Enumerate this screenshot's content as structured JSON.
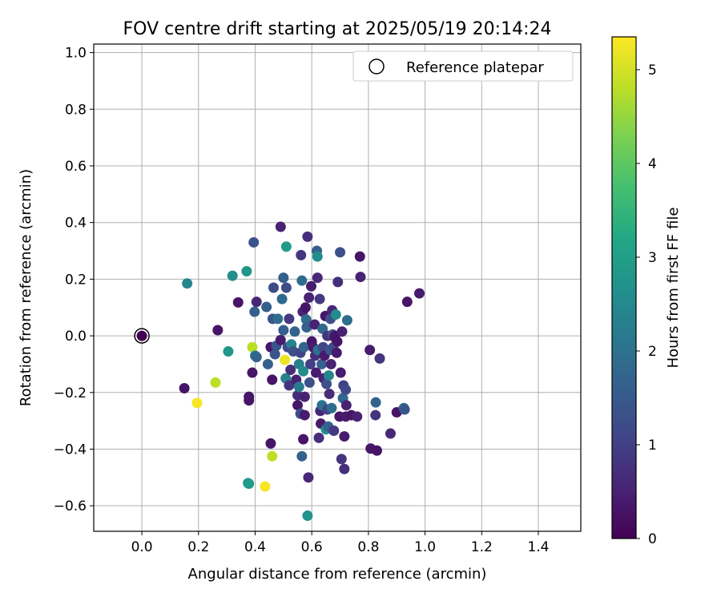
{
  "chart_data": {
    "type": "scatter",
    "title": "FOV centre drift starting at 2025/05/19 20:14:24",
    "xlabel": "Angular distance from reference (arcmin)",
    "ylabel": "Rotation from reference (arcmin)",
    "xlim": [
      -0.17,
      1.55
    ],
    "ylim": [
      -0.69,
      1.03
    ],
    "xticks": [
      0.0,
      0.2,
      0.4,
      0.6,
      0.8,
      1.0,
      1.2,
      1.4
    ],
    "yticks": [
      -0.6,
      -0.4,
      -0.2,
      0.0,
      0.2,
      0.4,
      0.6,
      0.8,
      1.0
    ],
    "grid": true,
    "legend": {
      "location": "upper-right",
      "label": "Reference platepar"
    },
    "reference_point": {
      "x": 0.0,
      "y": 0.0
    },
    "colorbar": {
      "label": "Hours from first FF file",
      "min": 0,
      "max": 5.35,
      "ticks": [
        0,
        1,
        2,
        3,
        4,
        5
      ],
      "colormap": "viridis"
    },
    "points": [
      {
        "x": 0.0,
        "y": 0.0,
        "c": 0.0
      },
      {
        "x": 0.16,
        "y": 0.185,
        "c": 2.4
      },
      {
        "x": 0.15,
        "y": -0.185,
        "c": 0.3
      },
      {
        "x": 0.195,
        "y": -0.237,
        "c": 5.3
      },
      {
        "x": 0.26,
        "y": -0.165,
        "c": 4.8
      },
      {
        "x": 0.268,
        "y": 0.02,
        "c": 0.3
      },
      {
        "x": 0.305,
        "y": -0.055,
        "c": 2.8
      },
      {
        "x": 0.32,
        "y": 0.212,
        "c": 2.6
      },
      {
        "x": 0.34,
        "y": 0.118,
        "c": 0.3
      },
      {
        "x": 0.37,
        "y": 0.228,
        "c": 2.8
      },
      {
        "x": 0.375,
        "y": -0.52,
        "c": 2.8
      },
      {
        "x": 0.378,
        "y": -0.522,
        "c": 2.9
      },
      {
        "x": 0.378,
        "y": -0.215,
        "c": 0.3
      },
      {
        "x": 0.378,
        "y": -0.228,
        "c": 0.3
      },
      {
        "x": 0.39,
        "y": -0.04,
        "c": 4.8
      },
      {
        "x": 0.39,
        "y": -0.13,
        "c": 0.3
      },
      {
        "x": 0.395,
        "y": 0.33,
        "c": 1.4
      },
      {
        "x": 0.398,
        "y": 0.085,
        "c": 1.6
      },
      {
        "x": 0.4,
        "y": -0.07,
        "c": 2.2
      },
      {
        "x": 0.405,
        "y": -0.075,
        "c": 1.7
      },
      {
        "x": 0.405,
        "y": 0.12,
        "c": 0.6
      },
      {
        "x": 0.435,
        "y": -0.532,
        "c": 5.3
      },
      {
        "x": 0.44,
        "y": 0.102,
        "c": 1.6
      },
      {
        "x": 0.445,
        "y": -0.1,
        "c": 1.6
      },
      {
        "x": 0.455,
        "y": -0.38,
        "c": 0.3
      },
      {
        "x": 0.455,
        "y": -0.04,
        "c": 0.3
      },
      {
        "x": 0.46,
        "y": -0.155,
        "c": 0.3
      },
      {
        "x": 0.46,
        "y": -0.425,
        "c": 4.8
      },
      {
        "x": 0.462,
        "y": 0.06,
        "c": 1.4
      },
      {
        "x": 0.465,
        "y": 0.17,
        "c": 1.2
      },
      {
        "x": 0.47,
        "y": -0.065,
        "c": 1.4
      },
      {
        "x": 0.475,
        "y": -0.035,
        "c": 1.4
      },
      {
        "x": 0.48,
        "y": 0.06,
        "c": 1.9
      },
      {
        "x": 0.49,
        "y": 0.385,
        "c": 0.5
      },
      {
        "x": 0.49,
        "y": -0.015,
        "c": 0.4
      },
      {
        "x": 0.495,
        "y": 0.13,
        "c": 1.8
      },
      {
        "x": 0.5,
        "y": 0.205,
        "c": 1.6
      },
      {
        "x": 0.5,
        "y": 0.02,
        "c": 1.6
      },
      {
        "x": 0.505,
        "y": -0.085,
        "c": 5.2
      },
      {
        "x": 0.508,
        "y": -0.15,
        "c": 2.4
      },
      {
        "x": 0.51,
        "y": 0.315,
        "c": 2.9
      },
      {
        "x": 0.51,
        "y": 0.17,
        "c": 1.2
      },
      {
        "x": 0.515,
        "y": -0.04,
        "c": 1.2
      },
      {
        "x": 0.52,
        "y": 0.06,
        "c": 0.9
      },
      {
        "x": 0.52,
        "y": -0.175,
        "c": 0.8
      },
      {
        "x": 0.525,
        "y": -0.12,
        "c": 0.7
      },
      {
        "x": 0.528,
        "y": -0.03,
        "c": 2.4
      },
      {
        "x": 0.535,
        "y": -0.055,
        "c": 1.3
      },
      {
        "x": 0.54,
        "y": 0.015,
        "c": 1.7
      },
      {
        "x": 0.545,
        "y": -0.155,
        "c": 0.5
      },
      {
        "x": 0.55,
        "y": -0.21,
        "c": 0.7
      },
      {
        "x": 0.55,
        "y": -0.245,
        "c": 0.3
      },
      {
        "x": 0.555,
        "y": -0.1,
        "c": 2.3
      },
      {
        "x": 0.555,
        "y": -0.18,
        "c": 2.2
      },
      {
        "x": 0.56,
        "y": -0.275,
        "c": 1.3
      },
      {
        "x": 0.56,
        "y": -0.06,
        "c": 1.1
      },
      {
        "x": 0.562,
        "y": 0.285,
        "c": 0.8
      },
      {
        "x": 0.565,
        "y": 0.195,
        "c": 1.9
      },
      {
        "x": 0.565,
        "y": -0.425,
        "c": 1.7
      },
      {
        "x": 0.568,
        "y": 0.085,
        "c": 0.6
      },
      {
        "x": 0.57,
        "y": -0.365,
        "c": 0.3
      },
      {
        "x": 0.57,
        "y": -0.125,
        "c": 2.6
      },
      {
        "x": 0.572,
        "y": -0.04,
        "c": 1.7
      },
      {
        "x": 0.575,
        "y": -0.215,
        "c": 0.5
      },
      {
        "x": 0.575,
        "y": -0.28,
        "c": 0.4
      },
      {
        "x": 0.578,
        "y": 0.1,
        "c": 0.3
      },
      {
        "x": 0.58,
        "y": 0.058,
        "c": 1.9
      },
      {
        "x": 0.582,
        "y": 0.03,
        "c": 1.6
      },
      {
        "x": 0.585,
        "y": 0.35,
        "c": 0.7
      },
      {
        "x": 0.585,
        "y": -0.635,
        "c": 2.7
      },
      {
        "x": 0.588,
        "y": -0.5,
        "c": 0.6
      },
      {
        "x": 0.59,
        "y": 0.135,
        "c": 0.5
      },
      {
        "x": 0.592,
        "y": -0.165,
        "c": 1.3
      },
      {
        "x": 0.595,
        "y": -0.1,
        "c": 1.0
      },
      {
        "x": 0.598,
        "y": 0.175,
        "c": 0.4
      },
      {
        "x": 0.6,
        "y": -0.02,
        "c": 0.3
      },
      {
        "x": 0.605,
        "y": -0.04,
        "c": 0.4
      },
      {
        "x": 0.61,
        "y": 0.04,
        "c": 0.5
      },
      {
        "x": 0.612,
        "y": -0.07,
        "c": 0.7
      },
      {
        "x": 0.615,
        "y": -0.13,
        "c": 0.4
      },
      {
        "x": 0.618,
        "y": 0.3,
        "c": 1.6
      },
      {
        "x": 0.62,
        "y": 0.205,
        "c": 0.6
      },
      {
        "x": 0.62,
        "y": 0.28,
        "c": 2.6
      },
      {
        "x": 0.622,
        "y": -0.05,
        "c": 2.0
      },
      {
        "x": 0.625,
        "y": -0.36,
        "c": 0.7
      },
      {
        "x": 0.628,
        "y": 0.13,
        "c": 0.9
      },
      {
        "x": 0.63,
        "y": -0.265,
        "c": 0.6
      },
      {
        "x": 0.632,
        "y": -0.31,
        "c": 0.4
      },
      {
        "x": 0.635,
        "y": -0.1,
        "c": 1.6
      },
      {
        "x": 0.636,
        "y": -0.245,
        "c": 2.0
      },
      {
        "x": 0.638,
        "y": 0.025,
        "c": 1.8
      },
      {
        "x": 0.64,
        "y": -0.04,
        "c": 1.1
      },
      {
        "x": 0.642,
        "y": -0.15,
        "c": 0.5
      },
      {
        "x": 0.645,
        "y": -0.07,
        "c": 0.4
      },
      {
        "x": 0.648,
        "y": 0.07,
        "c": 0.3
      },
      {
        "x": 0.65,
        "y": -0.33,
        "c": 2.6
      },
      {
        "x": 0.652,
        "y": -0.17,
        "c": 1.3
      },
      {
        "x": 0.655,
        "y": 0.0,
        "c": 0.8
      },
      {
        "x": 0.655,
        "y": -0.26,
        "c": 1.1
      },
      {
        "x": 0.658,
        "y": -0.32,
        "c": 1.7
      },
      {
        "x": 0.66,
        "y": -0.14,
        "c": 2.4
      },
      {
        "x": 0.662,
        "y": -0.205,
        "c": 0.7
      },
      {
        "x": 0.665,
        "y": -0.05,
        "c": 1.5
      },
      {
        "x": 0.666,
        "y": 0.06,
        "c": 1.3
      },
      {
        "x": 0.668,
        "y": -0.1,
        "c": 0.5
      },
      {
        "x": 0.67,
        "y": -0.255,
        "c": 1.9
      },
      {
        "x": 0.672,
        "y": 0.09,
        "c": 0.6
      },
      {
        "x": 0.674,
        "y": 0.005,
        "c": 1.4
      },
      {
        "x": 0.676,
        "y": -0.04,
        "c": 1.2
      },
      {
        "x": 0.678,
        "y": -0.335,
        "c": 0.9
      },
      {
        "x": 0.68,
        "y": -0.005,
        "c": 0.6
      },
      {
        "x": 0.682,
        "y": 0.0,
        "c": 0.3
      },
      {
        "x": 0.685,
        "y": 0.075,
        "c": 2.6
      },
      {
        "x": 0.688,
        "y": -0.06,
        "c": 0.4
      },
      {
        "x": 0.69,
        "y": -0.02,
        "c": 0.3
      },
      {
        "x": 0.692,
        "y": 0.19,
        "c": 0.7
      },
      {
        "x": 0.698,
        "y": -0.285,
        "c": 0.3
      },
      {
        "x": 0.7,
        "y": 0.295,
        "c": 1.3
      },
      {
        "x": 0.702,
        "y": -0.13,
        "c": 0.4
      },
      {
        "x": 0.705,
        "y": -0.435,
        "c": 0.8
      },
      {
        "x": 0.707,
        "y": 0.015,
        "c": 0.5
      },
      {
        "x": 0.71,
        "y": -0.22,
        "c": 1.8
      },
      {
        "x": 0.712,
        "y": -0.175,
        "c": 1.0
      },
      {
        "x": 0.715,
        "y": -0.47,
        "c": 0.7
      },
      {
        "x": 0.715,
        "y": -0.355,
        "c": 0.4
      },
      {
        "x": 0.72,
        "y": -0.19,
        "c": 1.2
      },
      {
        "x": 0.72,
        "y": -0.285,
        "c": 0.4
      },
      {
        "x": 0.722,
        "y": -0.245,
        "c": 0.5
      },
      {
        "x": 0.725,
        "y": 0.055,
        "c": 1.9
      },
      {
        "x": 0.74,
        "y": -0.28,
        "c": 0.3
      },
      {
        "x": 0.76,
        "y": -0.285,
        "c": 0.5
      },
      {
        "x": 0.77,
        "y": 0.28,
        "c": 0.3
      },
      {
        "x": 0.772,
        "y": 0.208,
        "c": 0.5
      },
      {
        "x": 0.805,
        "y": -0.05,
        "c": 0.4
      },
      {
        "x": 0.808,
        "y": -0.398,
        "c": 0.3
      },
      {
        "x": 0.825,
        "y": -0.28,
        "c": 0.8
      },
      {
        "x": 0.826,
        "y": -0.235,
        "c": 1.7
      },
      {
        "x": 0.83,
        "y": -0.405,
        "c": 0.3
      },
      {
        "x": 0.84,
        "y": -0.08,
        "c": 0.8
      },
      {
        "x": 0.878,
        "y": -0.345,
        "c": 0.6
      },
      {
        "x": 0.9,
        "y": -0.27,
        "c": 0.3
      },
      {
        "x": 0.925,
        "y": -0.255,
        "c": 2.0
      },
      {
        "x": 0.928,
        "y": -0.26,
        "c": 1.4
      },
      {
        "x": 0.937,
        "y": 0.12,
        "c": 0.3
      },
      {
        "x": 0.98,
        "y": 0.15,
        "c": 0.4
      }
    ]
  }
}
